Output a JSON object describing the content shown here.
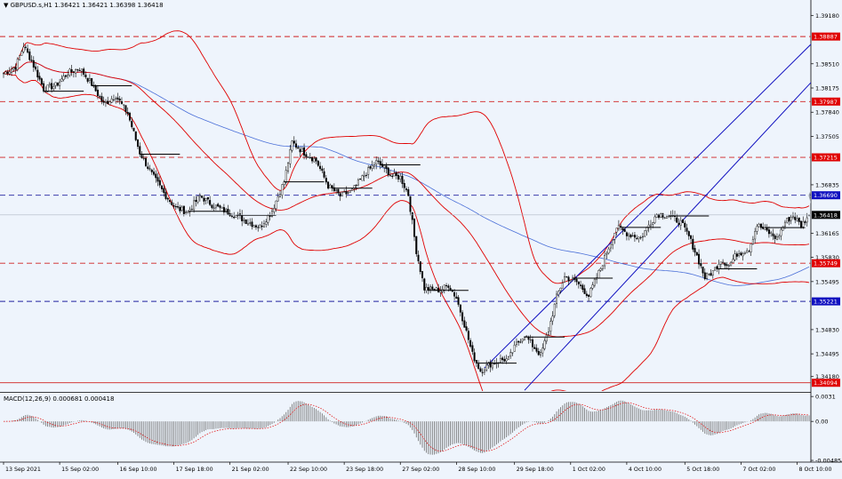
{
  "header": {
    "title": "GBPUSD.s,H1  1.36421 1.36421 1.36398 1.36418",
    "arrow_icon": "triangle-down-icon"
  },
  "macd_label": "MACD(12,26,9) 0.000681 0.000418",
  "colors": {
    "background": "#eef4fc",
    "candle": "#000000",
    "bollinger": "#e00000",
    "ma_blue": "#4a6fd8",
    "channel": "#1010c0",
    "red_dash": "#d02020",
    "blue_dash": "#2020a0",
    "arrow": "#9aa0a8",
    "price_tag_red": "#e00000",
    "price_tag_blue": "#1010c0",
    "current_tag": "#000000",
    "macd_hist": "#6a6a6a",
    "macd_signal": "#e00000"
  },
  "chart_data": {
    "type": "candlestick",
    "symbol": "GBPUSD.s",
    "timeframe": "H1",
    "ohlc_last": {
      "open": 1.36421,
      "high": 1.36421,
      "low": 1.36398,
      "close": 1.36418
    },
    "ylim": [
      1.3398,
      1.3927
    ],
    "y_tick_labels": [
      "1.39180",
      "1.38510",
      "1.38175",
      "1.37840",
      "1.37505",
      "1.36835",
      "1.36165",
      "1.35830",
      "1.35495",
      "1.34830",
      "1.34495",
      "1.34180"
    ],
    "x_tick_labels": [
      "13 Sep 2021",
      "15 Sep 02:00",
      "16 Sep 10:00",
      "17 Sep 18:00",
      "21 Sep 02:00",
      "22 Sep 10:00",
      "23 Sep 18:00",
      "27 Sep 02:00",
      "28 Sep 10:00",
      "29 Sep 18:00",
      "1 Oct 02:00",
      "4 Oct 10:00",
      "5 Oct 18:00",
      "7 Oct 02:00",
      "8 Oct 10:00"
    ],
    "horizontal_levels": [
      {
        "label": "1.38887",
        "value": 1.38887,
        "color": "red",
        "style": "dashed"
      },
      {
        "label": "1.37987",
        "value": 1.37987,
        "color": "red",
        "style": "dashed"
      },
      {
        "label": "1.37215",
        "value": 1.37215,
        "color": "red",
        "style": "dashed"
      },
      {
        "label": "1.36690",
        "value": 1.3669,
        "color": "blue",
        "style": "dashed"
      },
      {
        "label": "1.35749",
        "value": 1.35749,
        "color": "red",
        "style": "dashed"
      },
      {
        "label": "1.35221",
        "value": 1.35221,
        "color": "blue",
        "style": "dashed"
      },
      {
        "label": "1.34094",
        "value": 1.34094,
        "color": "red",
        "style": "solid"
      }
    ],
    "current_price": {
      "label": "1.36418",
      "value": 1.36418
    },
    "close_anchors": [
      [
        0,
        1.3838
      ],
      [
        6,
        1.3847
      ],
      [
        10,
        1.3876
      ],
      [
        14,
        1.3855
      ],
      [
        20,
        1.3816
      ],
      [
        26,
        1.3821
      ],
      [
        32,
        1.3838
      ],
      [
        38,
        1.3845
      ],
      [
        44,
        1.3823
      ],
      [
        50,
        1.3795
      ],
      [
        56,
        1.3807
      ],
      [
        62,
        1.3782
      ],
      [
        68,
        1.3728
      ],
      [
        74,
        1.3698
      ],
      [
        80,
        1.3672
      ],
      [
        86,
        1.3651
      ],
      [
        92,
        1.3646
      ],
      [
        98,
        1.3668
      ],
      [
        104,
        1.3656
      ],
      [
        110,
        1.3648
      ],
      [
        116,
        1.3641
      ],
      [
        122,
        1.3632
      ],
      [
        128,
        1.3625
      ],
      [
        134,
        1.3648
      ],
      [
        140,
        1.3688
      ],
      [
        144,
        1.3742
      ],
      [
        150,
        1.3728
      ],
      [
        156,
        1.3717
      ],
      [
        162,
        1.3682
      ],
      [
        168,
        1.3668
      ],
      [
        174,
        1.3675
      ],
      [
        180,
        1.3697
      ],
      [
        186,
        1.3715
      ],
      [
        190,
        1.3707
      ],
      [
        194,
        1.3695
      ],
      [
        198,
        1.3694
      ],
      [
        202,
        1.367
      ],
      [
        206,
        1.3592
      ],
      [
        210,
        1.354
      ],
      [
        214,
        1.3538
      ],
      [
        218,
        1.3538
      ],
      [
        222,
        1.3545
      ],
      [
        226,
        1.3527
      ],
      [
        230,
        1.349
      ],
      [
        234,
        1.3449
      ],
      [
        238,
        1.3426
      ],
      [
        242,
        1.3434
      ],
      [
        248,
        1.3441
      ],
      [
        252,
        1.3442
      ],
      [
        256,
        1.3463
      ],
      [
        260,
        1.3476
      ],
      [
        264,
        1.3461
      ],
      [
        268,
        1.3448
      ],
      [
        272,
        1.3482
      ],
      [
        276,
        1.3528
      ],
      [
        280,
        1.3556
      ],
      [
        286,
        1.3549
      ],
      [
        292,
        1.353
      ],
      [
        298,
        1.3568
      ],
      [
        302,
        1.3597
      ],
      [
        306,
        1.3625
      ],
      [
        312,
        1.3615
      ],
      [
        318,
        1.361
      ],
      [
        322,
        1.3628
      ],
      [
        326,
        1.3643
      ],
      [
        332,
        1.3641
      ],
      [
        338,
        1.3631
      ],
      [
        342,
        1.3612
      ],
      [
        346,
        1.3585
      ],
      [
        350,
        1.3555
      ],
      [
        354,
        1.3563
      ],
      [
        358,
        1.358
      ],
      [
        362,
        1.3572
      ],
      [
        366,
        1.3588
      ],
      [
        372,
        1.3595
      ],
      [
        376,
        1.3628
      ],
      [
        382,
        1.3617
      ],
      [
        386,
        1.3609
      ],
      [
        390,
        1.3632
      ],
      [
        394,
        1.3641
      ],
      [
        398,
        1.3627
      ],
      [
        402,
        1.3642
      ]
    ],
    "bar_count": 403,
    "bollinger_period": 60,
    "bollinger_k": 2,
    "ma_period": 160,
    "channel": {
      "line1": [
        [
          240,
          1.343
        ],
        [
          420,
          1.3925
        ]
      ],
      "line2": [
        [
          260,
          1.3399
        ],
        [
          420,
          1.3876
        ]
      ]
    },
    "arrows": [
      {
        "from": [
          402,
          1.3669
        ],
        "to": [
          411,
          1.3723
        ]
      },
      {
        "from": [
          402,
          1.3669
        ],
        "to": [
          411,
          1.358
        ]
      },
      {
        "from": [
          411,
          1.358
        ],
        "to": [
          420,
          1.3524
        ]
      }
    ],
    "macd": {
      "params": "12,26,9",
      "main": 0.000681,
      "signal": 0.000418,
      "ylim": [
        -0.00485,
        0.00345
      ],
      "y_tick_labels": [
        "0.0031",
        "0.00",
        "-0.004854"
      ]
    }
  }
}
